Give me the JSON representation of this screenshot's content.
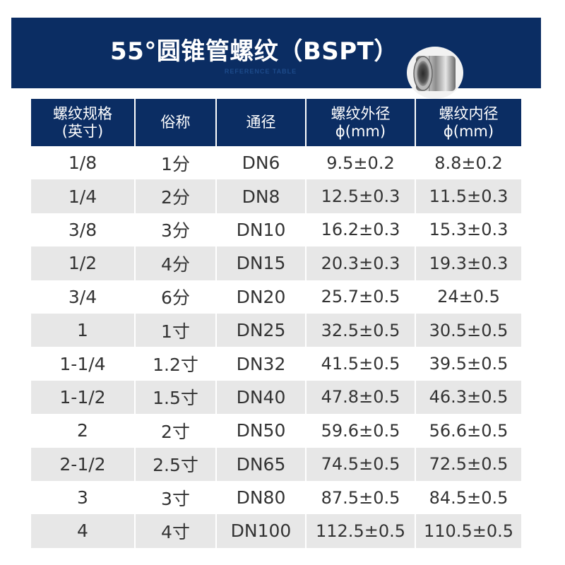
{
  "banner": {
    "title": "55°圆锥管螺纹（BSPT）",
    "subtitle": "REFERENCE TABLE",
    "image": "threaded-pipe-nipple"
  },
  "colors": {
    "header_bg": "#0b2d63",
    "stripe": "#e7e7e7",
    "text": "#333333"
  },
  "table": {
    "headers": [
      [
        "螺纹规格",
        "(英寸)"
      ],
      [
        "俗称"
      ],
      [
        "通径"
      ],
      [
        "螺纹外径",
        "ϕ(mm)"
      ],
      [
        "螺纹内径",
        "ϕ(mm)"
      ]
    ],
    "rows": [
      [
        "1/8",
        "1分",
        "DN6",
        "9.5±0.2",
        "8.8±0.2"
      ],
      [
        "1/4",
        "2分",
        "DN8",
        "12.5±0.3",
        "11.5±0.3"
      ],
      [
        "3/8",
        "3分",
        "DN10",
        "16.2±0.3",
        "15.3±0.3"
      ],
      [
        "1/2",
        "4分",
        "DN15",
        "20.3±0.3",
        "19.3±0.3"
      ],
      [
        "3/4",
        "6分",
        "DN20",
        "25.7±0.5",
        "24±0.5"
      ],
      [
        "1",
        "1寸",
        "DN25",
        "32.5±0.5",
        "30.5±0.5"
      ],
      [
        "1-1/4",
        "1.2寸",
        "DN32",
        "41.5±0.5",
        "39.5±0.5"
      ],
      [
        "1-1/2",
        "1.5寸",
        "DN40",
        "47.8±0.5",
        "46.3±0.5"
      ],
      [
        "2",
        "2寸",
        "DN50",
        "59.6±0.5",
        "56.6±0.5"
      ],
      [
        "2-1/2",
        "2.5寸",
        "DN65",
        "74.5±0.5",
        "72.5±0.5"
      ],
      [
        "3",
        "3寸",
        "DN80",
        "87.5±0.5",
        "84.5±0.5"
      ],
      [
        "4",
        "4寸",
        "DN100",
        "112.5±0.5",
        "110.5±0.5"
      ]
    ]
  }
}
